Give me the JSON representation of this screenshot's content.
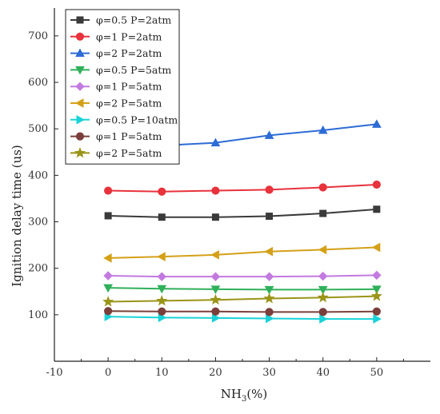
{
  "chart_data": {
    "type": "line",
    "title": "",
    "xlabel": "NH",
    "xlabel_subscript": "3",
    "xlabel_suffix": "(%)",
    "ylabel": "Ignition delay time (us)",
    "xlim": [
      -10,
      60
    ],
    "ylim": [
      0,
      760
    ],
    "xticks": [
      -10,
      0,
      10,
      20,
      30,
      40,
      50
    ],
    "yticks": [
      100,
      200,
      300,
      400,
      500,
      600,
      700
    ],
    "grid": false,
    "legend_position": "top-left",
    "x": [
      0,
      10,
      20,
      30,
      40,
      50
    ],
    "series": [
      {
        "name": "φ=0.5 P=2atm",
        "color": "#3a3a3a",
        "marker": "square",
        "values": [
          313,
          310,
          310,
          312,
          318,
          327
        ]
      },
      {
        "name": "φ=1 P=2atm",
        "color": "#e8323c",
        "marker": "circle",
        "values": [
          367,
          365,
          367,
          369,
          374,
          380
        ]
      },
      {
        "name": "φ=2 P=2atm",
        "color": "#2d6bd6",
        "marker": "triangle-up",
        "values": [
          458,
          464,
          470,
          486,
          497,
          510
        ]
      },
      {
        "name": "φ=0.5 P=5atm",
        "color": "#2fb05a",
        "marker": "triangle-down",
        "values": [
          158,
          156,
          155,
          154,
          154,
          155
        ]
      },
      {
        "name": "φ=1 P=5atm",
        "color": "#c27ae0",
        "marker": "diamond",
        "values": [
          184,
          182,
          182,
          182,
          183,
          185
        ]
      },
      {
        "name": "φ=2 P=5atm",
        "color": "#d4a017",
        "marker": "triangle-left",
        "values": [
          222,
          225,
          229,
          236,
          240,
          245
        ]
      },
      {
        "name": "φ=0.5 P=10atm",
        "color": "#19d3d8",
        "marker": "triangle-right",
        "values": [
          96,
          94,
          93,
          92,
          91,
          91
        ]
      },
      {
        "name": "φ=1 P=5atm",
        "color": "#7a3f3a",
        "marker": "circle",
        "values": [
          108,
          107,
          107,
          106,
          106,
          107
        ]
      },
      {
        "name": "φ=2 P=5atm",
        "color": "#9a9418",
        "marker": "star",
        "values": [
          128,
          130,
          132,
          135,
          137,
          140
        ]
      }
    ]
  }
}
